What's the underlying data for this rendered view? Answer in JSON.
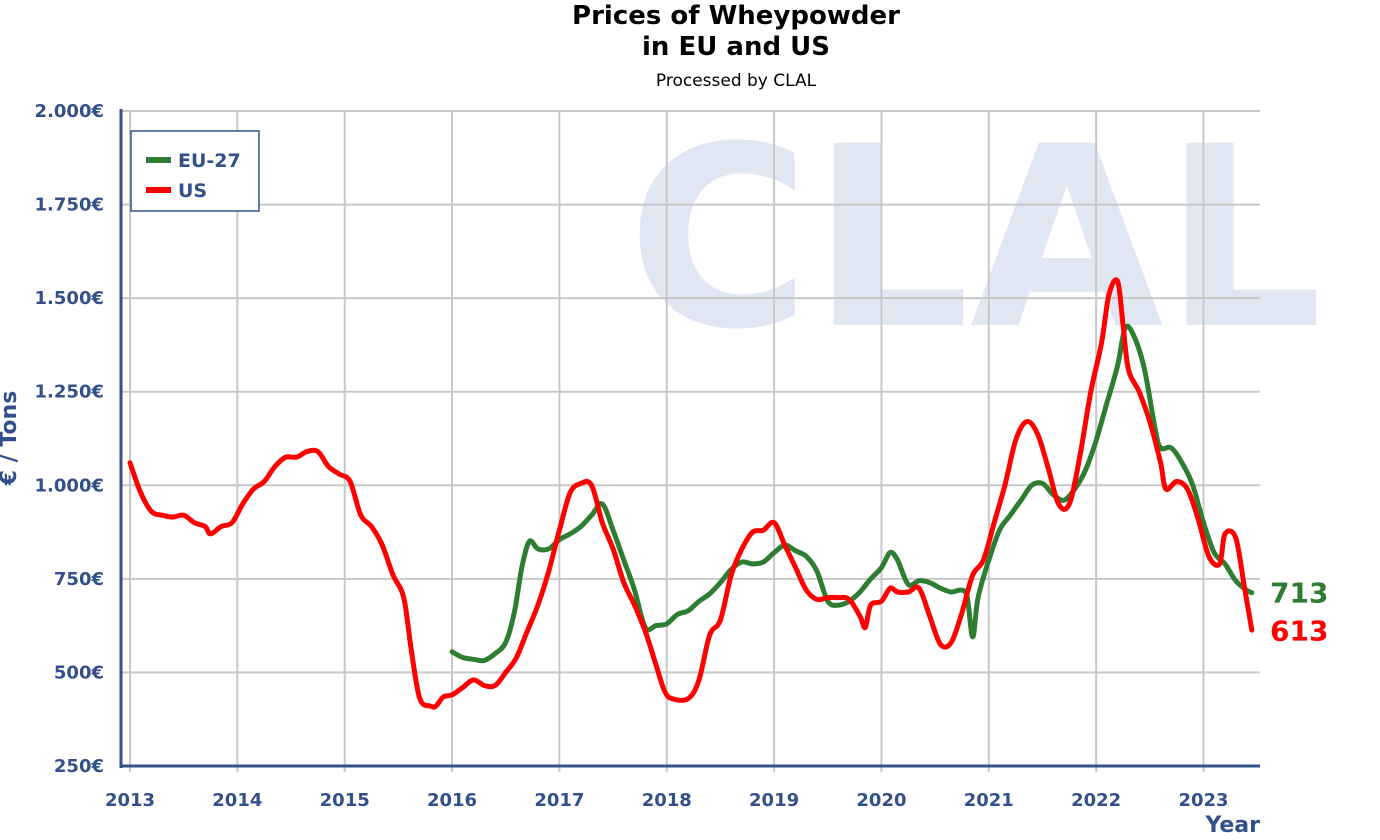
{
  "chart_data": {
    "type": "line",
    "title": "Prices of Wheypowder",
    "title_line2": "in EU and US",
    "subtitle": "Processed by CLAL",
    "watermark": "CLAL",
    "ylabel": "€ / Tons",
    "xlabel": "Year",
    "ylim": [
      250,
      2000
    ],
    "xlim": [
      2013,
      2023.45
    ],
    "y_ticks": [
      {
        "value": 250,
        "label": "250€"
      },
      {
        "value": 500,
        "label": "500€"
      },
      {
        "value": 750,
        "label": "750€"
      },
      {
        "value": 1000,
        "label": "1.000€"
      },
      {
        "value": 1250,
        "label": "1.250€"
      },
      {
        "value": 1500,
        "label": "1.500€"
      },
      {
        "value": 1750,
        "label": "1.750€"
      },
      {
        "value": 2000,
        "label": "2.000€"
      }
    ],
    "x_ticks": [
      {
        "value": 2013,
        "label": "2013"
      },
      {
        "value": 2014,
        "label": "2014"
      },
      {
        "value": 2015,
        "label": "2015"
      },
      {
        "value": 2016,
        "label": "2016"
      },
      {
        "value": 2017,
        "label": "2017"
      },
      {
        "value": 2018,
        "label": "2018"
      },
      {
        "value": 2019,
        "label": "2019"
      },
      {
        "value": 2020,
        "label": "2020"
      },
      {
        "value": 2021,
        "label": "2021"
      },
      {
        "value": 2022,
        "label": "2022"
      },
      {
        "value": 2023,
        "label": "2023"
      }
    ],
    "grid": true,
    "legend_position": "top-left",
    "series": [
      {
        "name": "EU-27",
        "color": "#2e7d32",
        "last_label": "713",
        "points": [
          [
            2016.0,
            555
          ],
          [
            2016.1,
            540
          ],
          [
            2016.2,
            535
          ],
          [
            2016.3,
            532
          ],
          [
            2016.4,
            550
          ],
          [
            2016.5,
            580
          ],
          [
            2016.58,
            660
          ],
          [
            2016.65,
            780
          ],
          [
            2016.72,
            850
          ],
          [
            2016.8,
            830
          ],
          [
            2016.9,
            830
          ],
          [
            2017.0,
            855
          ],
          [
            2017.1,
            870
          ],
          [
            2017.2,
            890
          ],
          [
            2017.3,
            920
          ],
          [
            2017.4,
            950
          ],
          [
            2017.5,
            880
          ],
          [
            2017.6,
            800
          ],
          [
            2017.7,
            720
          ],
          [
            2017.8,
            620
          ],
          [
            2017.9,
            625
          ],
          [
            2018.0,
            630
          ],
          [
            2018.1,
            655
          ],
          [
            2018.2,
            665
          ],
          [
            2018.3,
            690
          ],
          [
            2018.4,
            710
          ],
          [
            2018.5,
            740
          ],
          [
            2018.6,
            775
          ],
          [
            2018.7,
            795
          ],
          [
            2018.8,
            790
          ],
          [
            2018.9,
            795
          ],
          [
            2019.0,
            820
          ],
          [
            2019.1,
            840
          ],
          [
            2019.2,
            825
          ],
          [
            2019.3,
            810
          ],
          [
            2019.4,
            770
          ],
          [
            2019.5,
            690
          ],
          [
            2019.6,
            680
          ],
          [
            2019.7,
            690
          ],
          [
            2019.8,
            715
          ],
          [
            2019.9,
            750
          ],
          [
            2020.0,
            780
          ],
          [
            2020.08,
            820
          ],
          [
            2020.15,
            800
          ],
          [
            2020.25,
            735
          ],
          [
            2020.35,
            745
          ],
          [
            2020.45,
            740
          ],
          [
            2020.55,
            725
          ],
          [
            2020.65,
            715
          ],
          [
            2020.75,
            720
          ],
          [
            2020.8,
            700
          ],
          [
            2020.85,
            595
          ],
          [
            2020.9,
            700
          ],
          [
            2021.0,
            800
          ],
          [
            2021.1,
            880
          ],
          [
            2021.2,
            920
          ],
          [
            2021.3,
            960
          ],
          [
            2021.4,
            1000
          ],
          [
            2021.5,
            1005
          ],
          [
            2021.6,
            975
          ],
          [
            2021.7,
            960
          ],
          [
            2021.8,
            990
          ],
          [
            2021.9,
            1040
          ],
          [
            2022.0,
            1120
          ],
          [
            2022.1,
            1220
          ],
          [
            2022.2,
            1320
          ],
          [
            2022.27,
            1420
          ],
          [
            2022.35,
            1400
          ],
          [
            2022.45,
            1310
          ],
          [
            2022.55,
            1150
          ],
          [
            2022.6,
            1100
          ],
          [
            2022.7,
            1100
          ],
          [
            2022.8,
            1060
          ],
          [
            2022.9,
            1000
          ],
          [
            2023.0,
            900
          ],
          [
            2023.1,
            820
          ],
          [
            2023.2,
            790
          ],
          [
            2023.3,
            745
          ],
          [
            2023.4,
            720
          ],
          [
            2023.45,
            713
          ]
        ]
      },
      {
        "name": "US",
        "color": "#ff0000",
        "last_label": "613",
        "points": [
          [
            2013.0,
            1060
          ],
          [
            2013.1,
            980
          ],
          [
            2013.2,
            930
          ],
          [
            2013.3,
            920
          ],
          [
            2013.4,
            915
          ],
          [
            2013.5,
            920
          ],
          [
            2013.6,
            900
          ],
          [
            2013.7,
            890
          ],
          [
            2013.75,
            870
          ],
          [
            2013.85,
            890
          ],
          [
            2013.95,
            900
          ],
          [
            2014.05,
            950
          ],
          [
            2014.15,
            990
          ],
          [
            2014.25,
            1010
          ],
          [
            2014.35,
            1050
          ],
          [
            2014.45,
            1075
          ],
          [
            2014.55,
            1075
          ],
          [
            2014.65,
            1090
          ],
          [
            2014.75,
            1090
          ],
          [
            2014.85,
            1050
          ],
          [
            2014.95,
            1030
          ],
          [
            2015.05,
            1010
          ],
          [
            2015.15,
            920
          ],
          [
            2015.25,
            890
          ],
          [
            2015.35,
            840
          ],
          [
            2015.45,
            760
          ],
          [
            2015.55,
            700
          ],
          [
            2015.62,
            560
          ],
          [
            2015.7,
            430
          ],
          [
            2015.8,
            410
          ],
          [
            2015.85,
            410
          ],
          [
            2015.92,
            435
          ],
          [
            2016.0,
            440
          ],
          [
            2016.1,
            460
          ],
          [
            2016.2,
            480
          ],
          [
            2016.3,
            465
          ],
          [
            2016.4,
            465
          ],
          [
            2016.5,
            500
          ],
          [
            2016.6,
            540
          ],
          [
            2016.7,
            610
          ],
          [
            2016.8,
            680
          ],
          [
            2016.9,
            770
          ],
          [
            2017.0,
            880
          ],
          [
            2017.1,
            980
          ],
          [
            2017.2,
            1005
          ],
          [
            2017.3,
            1000
          ],
          [
            2017.4,
            900
          ],
          [
            2017.5,
            830
          ],
          [
            2017.6,
            740
          ],
          [
            2017.7,
            680
          ],
          [
            2017.8,
            610
          ],
          [
            2017.9,
            520
          ],
          [
            2017.98,
            450
          ],
          [
            2018.05,
            430
          ],
          [
            2018.2,
            430
          ],
          [
            2018.3,
            480
          ],
          [
            2018.4,
            600
          ],
          [
            2018.5,
            640
          ],
          [
            2018.6,
            760
          ],
          [
            2018.7,
            830
          ],
          [
            2018.8,
            875
          ],
          [
            2018.9,
            880
          ],
          [
            2019.0,
            900
          ],
          [
            2019.1,
            840
          ],
          [
            2019.2,
            780
          ],
          [
            2019.3,
            720
          ],
          [
            2019.4,
            695
          ],
          [
            2019.5,
            700
          ],
          [
            2019.6,
            700
          ],
          [
            2019.7,
            695
          ],
          [
            2019.8,
            650
          ],
          [
            2019.85,
            620
          ],
          [
            2019.9,
            680
          ],
          [
            2020.0,
            690
          ],
          [
            2020.08,
            725
          ],
          [
            2020.15,
            715
          ],
          [
            2020.25,
            715
          ],
          [
            2020.35,
            725
          ],
          [
            2020.45,
            650
          ],
          [
            2020.55,
            575
          ],
          [
            2020.65,
            580
          ],
          [
            2020.75,
            660
          ],
          [
            2020.85,
            760
          ],
          [
            2020.95,
            800
          ],
          [
            2021.05,
            900
          ],
          [
            2021.15,
            1000
          ],
          [
            2021.25,
            1120
          ],
          [
            2021.35,
            1170
          ],
          [
            2021.45,
            1140
          ],
          [
            2021.55,
            1050
          ],
          [
            2021.65,
            950
          ],
          [
            2021.75,
            950
          ],
          [
            2021.85,
            1080
          ],
          [
            2021.95,
            1250
          ],
          [
            2022.05,
            1380
          ],
          [
            2022.12,
            1510
          ],
          [
            2022.2,
            1545
          ],
          [
            2022.25,
            1430
          ],
          [
            2022.3,
            1310
          ],
          [
            2022.4,
            1250
          ],
          [
            2022.5,
            1170
          ],
          [
            2022.6,
            1060
          ],
          [
            2022.65,
            990
          ],
          [
            2022.75,
            1010
          ],
          [
            2022.85,
            990
          ],
          [
            2022.95,
            910
          ],
          [
            2023.05,
            810
          ],
          [
            2023.15,
            790
          ],
          [
            2023.2,
            870
          ],
          [
            2023.3,
            860
          ],
          [
            2023.38,
            730
          ],
          [
            2023.45,
            613
          ]
        ]
      }
    ]
  }
}
